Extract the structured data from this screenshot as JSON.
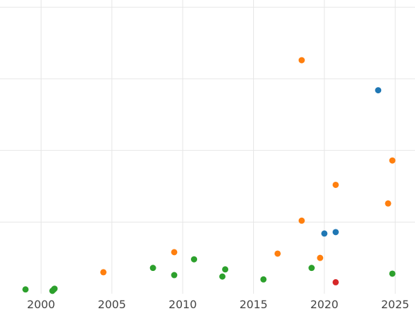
{
  "chart_data": {
    "type": "scatter",
    "title": "",
    "xlabel": "",
    "ylabel": "",
    "grid": true,
    "legend": "none",
    "xlim": [
      1997.1,
      2026.4
    ],
    "ylim": [
      0,
      20.5
    ],
    "x_ticks": [
      2000,
      2005,
      2010,
      2015,
      2020,
      2025
    ],
    "x_tick_labels": [
      "2000",
      "2005",
      "2010",
      "2015",
      "2020",
      "2025"
    ],
    "y_ticks": [
      5,
      10,
      15,
      20
    ],
    "series": [
      {
        "color": "#1f77b4",
        "points": [
          {
            "x": 2020.0,
            "y": 4.2
          },
          {
            "x": 2020.8,
            "y": 4.3
          },
          {
            "x": 2023.8,
            "y": 14.2
          }
        ]
      },
      {
        "color": "#ff7f0e",
        "points": [
          {
            "x": 2004.4,
            "y": 1.5
          },
          {
            "x": 2009.4,
            "y": 2.9
          },
          {
            "x": 2016.7,
            "y": 2.8
          },
          {
            "x": 2018.4,
            "y": 5.1
          },
          {
            "x": 2018.4,
            "y": 16.3
          },
          {
            "x": 2019.7,
            "y": 2.5
          },
          {
            "x": 2020.8,
            "y": 7.6
          },
          {
            "x": 2024.5,
            "y": 6.3
          },
          {
            "x": 2024.8,
            "y": 9.3
          }
        ]
      },
      {
        "color": "#2ca02c",
        "points": [
          {
            "x": 1998.9,
            "y": 0.3
          },
          {
            "x": 2000.8,
            "y": 0.2
          },
          {
            "x": 2000.9,
            "y": 0.3
          },
          {
            "x": 2000.95,
            "y": 0.35
          },
          {
            "x": 2007.9,
            "y": 1.8
          },
          {
            "x": 2009.4,
            "y": 1.3
          },
          {
            "x": 2010.8,
            "y": 2.4
          },
          {
            "x": 2012.8,
            "y": 1.2
          },
          {
            "x": 2013.0,
            "y": 1.7
          },
          {
            "x": 2015.7,
            "y": 1.0
          },
          {
            "x": 2019.1,
            "y": 1.8
          },
          {
            "x": 2024.8,
            "y": 1.4
          }
        ]
      },
      {
        "color": "#d62728",
        "points": [
          {
            "x": 2020.8,
            "y": 0.8
          }
        ]
      }
    ]
  }
}
